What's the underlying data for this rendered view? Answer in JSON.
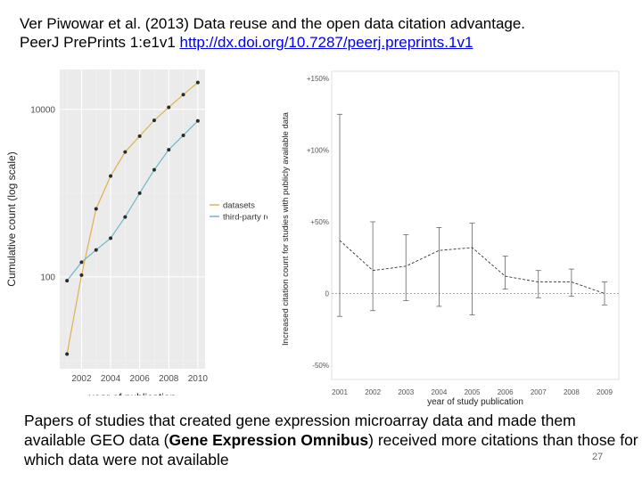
{
  "header": {
    "line1": "Ver Piwowar et al. (2013) Data reuse and the open data citation advantage.",
    "line2_prefix": "PeerJ PrePrints 1:e1v1 ",
    "link": "http://dx.doi.org/10.7287/peerj.preprints.1v1"
  },
  "caption": {
    "part1": "Papers of studies that created gene expression microarray data and made them available GEO data (",
    "bold": "Gene Expression Omnibus",
    "part2": ") received more citations than those for which data were not available"
  },
  "slide_number": "27",
  "chart_data": [
    {
      "type": "line",
      "xlabel": "year of publication",
      "ylabel": "Cumulative count (log scale)",
      "yscale": "log",
      "ylim": [
        8,
        30000
      ],
      "xlim": [
        2000.5,
        2010.5
      ],
      "x_ticks": [
        "2002",
        "2004",
        "2006",
        "2008",
        "2010"
      ],
      "y_ticks": [
        "100",
        "10000"
      ],
      "x": [
        2001,
        2002,
        2003,
        2004,
        2005,
        2006,
        2007,
        2008,
        2009,
        2010
      ],
      "series": [
        {
          "name": "datasets",
          "color": "#e0b050",
          "values": [
            12,
            105,
            650,
            1600,
            3100,
            4800,
            7400,
            10600,
            15000,
            21000
          ]
        },
        {
          "name": "third-party reu",
          "color": "#6ab8cc",
          "values": [
            90,
            150,
            210,
            290,
            520,
            1000,
            1900,
            3300,
            4900,
            7300
          ]
        }
      ],
      "legend": [
        "datasets",
        "third-party reu"
      ]
    },
    {
      "type": "line",
      "xlabel": "year of study publication",
      "ylabel": "Increased citation count for studies with publicly available data",
      "ylim": [
        -60,
        155
      ],
      "y_ticks": [
        "+150%",
        "+100%",
        "+50%",
        "0",
        "-50%"
      ],
      "y_tick_values": [
        150,
        100,
        50,
        0,
        -50
      ],
      "x": [
        "2001",
        "2002",
        "2003",
        "2004",
        "2005",
        "2006",
        "2007",
        "2008",
        "2009"
      ],
      "values": [
        37,
        16,
        19,
        30,
        32,
        12,
        8,
        8,
        0
      ],
      "error_low": [
        -16,
        -12,
        -5,
        -9,
        -15,
        3,
        -3,
        -2,
        -8
      ],
      "error_high": [
        125,
        50,
        41,
        46,
        49,
        26,
        16,
        17,
        8
      ]
    }
  ]
}
